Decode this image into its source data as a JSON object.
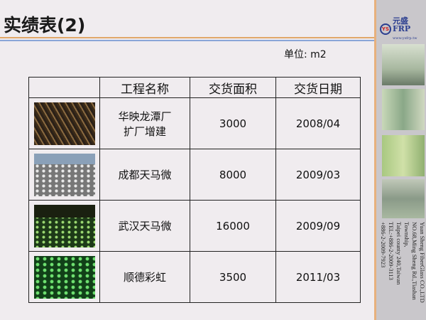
{
  "title": "实绩表(2)",
  "unit": "单位: m2",
  "table": {
    "headers": [
      "",
      "工程名称",
      "交货面积",
      "交货日期"
    ],
    "rows": [
      {
        "name": "华映龙潭厂\n扩厂增建",
        "name1": "华映龙潭厂",
        "name2": "扩厂增建",
        "area": "3000",
        "date": "2008/04",
        "photo": "construction-site-photo"
      },
      {
        "name1": "成都天马微",
        "name2": "",
        "area": "8000",
        "date": "2009/03",
        "photo": "grating-floor-photo"
      },
      {
        "name1": "武汉天马微",
        "name2": "",
        "area": "16000",
        "date": "2009/09",
        "photo": "green-lit-floor-photo"
      },
      {
        "name1": "顺德彩虹",
        "name2": "",
        "area": "3500",
        "date": "2011/03",
        "photo": "green-domes-photo"
      }
    ]
  },
  "sidebar": {
    "logo_mark": "YS",
    "logo_name": "元盛FRP",
    "logo_url": "www.ysfrp.tw",
    "address": [
      "Yuan Sheng FiberGlass CO.,LTD",
      "NO.68,Ming Sheng Rd.,Tiashan Township,",
      "Taipei county 240,Taiwan",
      "TEL:+886-2-2009-3113",
      "+886-2-2009-7923"
    ]
  }
}
